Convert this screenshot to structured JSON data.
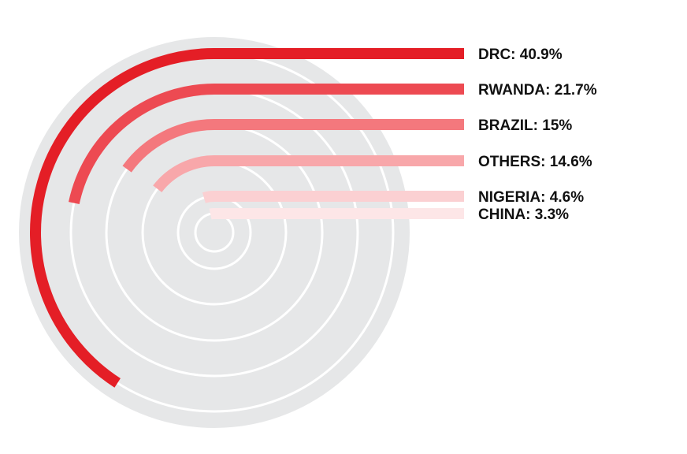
{
  "chart_data": {
    "type": "radial-bar",
    "unit": "%",
    "categories": [
      "DRC",
      "RWANDA",
      "BRAZIL",
      "OTHERS",
      "NIGERIA",
      "CHINA"
    ],
    "values": [
      40.9,
      21.7,
      15,
      14.6,
      4.6,
      3.3
    ],
    "labels": [
      "DRC: 40.9%",
      "RWANDA: 21.7%",
      "BRAZIL: 15%",
      "OTHERS: 14.6%",
      "NIGERIA: 4.6%",
      "CHINA: 3.3%"
    ],
    "colors": [
      "#e41e26",
      "#ed4a52",
      "#f4787d",
      "#f8a7aa",
      "#fbd0d2",
      "#fde6e7"
    ],
    "background_color": "#e6e7e8",
    "guide_ring_color": "#ffffff",
    "arc_full_scale_percent": 100
  }
}
